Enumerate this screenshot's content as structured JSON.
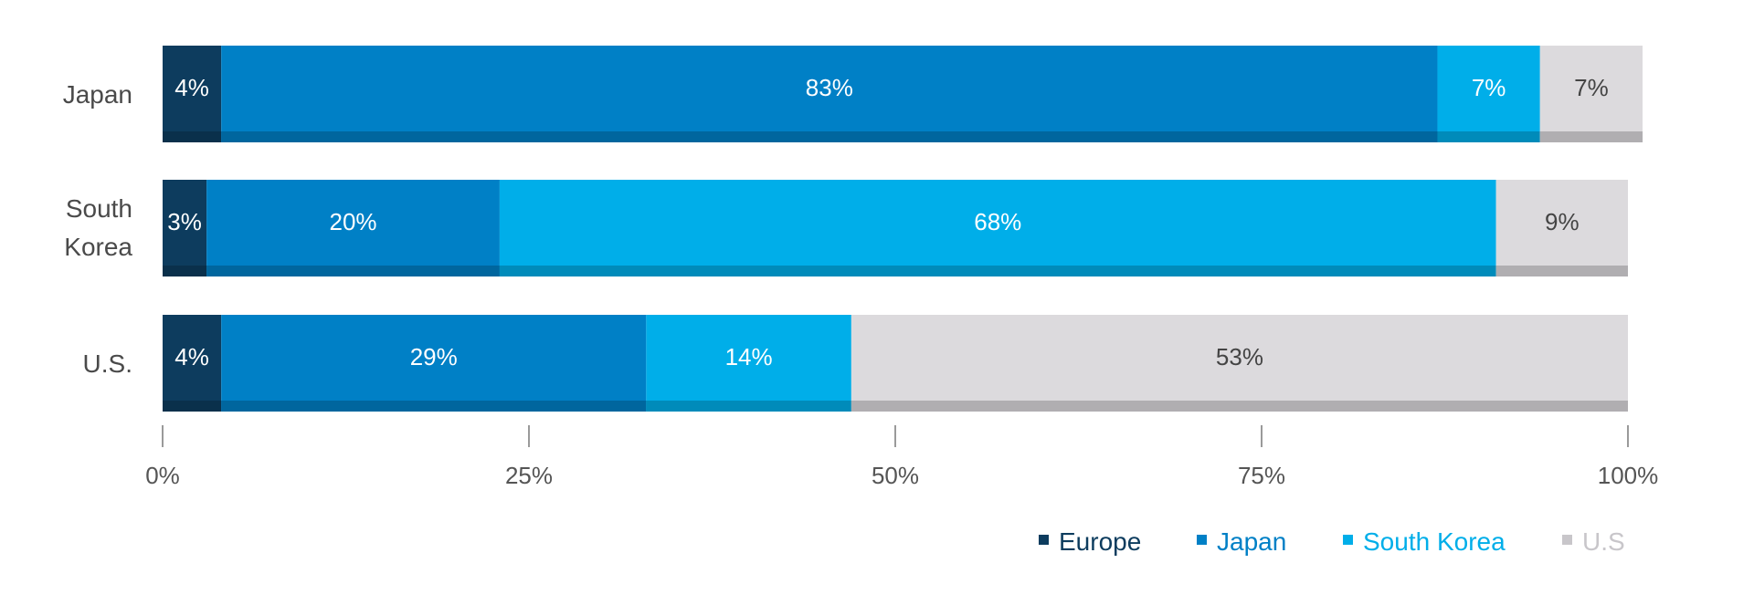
{
  "chart_data": {
    "type": "bar",
    "orientation": "horizontal",
    "stacked": true,
    "categories": [
      "Japan",
      "South Korea",
      "U.S."
    ],
    "series": [
      {
        "name": "Europe",
        "values": [
          4,
          3,
          4
        ],
        "labels": [
          "4%",
          "3%",
          "4%"
        ],
        "color": "#0d3c5e",
        "label_color": "#ffffff",
        "legend_label": "Europe",
        "legend_color": "#0d3c5e"
      },
      {
        "name": "Japan",
        "values": [
          83,
          20,
          29
        ],
        "labels": [
          "83%",
          "20%",
          "29%"
        ],
        "color": "#0080c6",
        "label_color": "#ffffff",
        "legend_label": "Japan",
        "legend_color": "#0080c6"
      },
      {
        "name": "South Korea",
        "values": [
          7,
          68,
          14
        ],
        "labels": [
          "7%",
          "68%",
          "14%"
        ],
        "color": "#00aee9",
        "label_color": "#ffffff",
        "legend_label": "South Korea",
        "legend_color": "#00aee9"
      },
      {
        "name": "U.S",
        "values": [
          7,
          9,
          53
        ],
        "labels": [
          "7%",
          "9%",
          "53%"
        ],
        "color": "#dcdadd",
        "label_color": "#444444",
        "legend_label": "U.S",
        "legend_color": "#c8c6ca"
      }
    ],
    "xlim": [
      0,
      100
    ],
    "ticks": [
      0,
      25,
      50,
      75,
      100
    ],
    "tick_labels": [
      "0%",
      "25%",
      "50%",
      "75%",
      "100%"
    ],
    "legend_position": "bottom-right",
    "grid": false
  }
}
